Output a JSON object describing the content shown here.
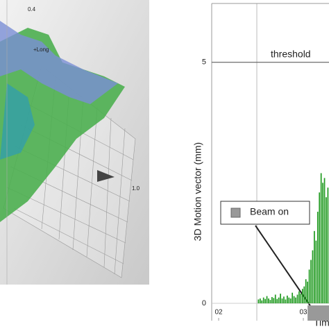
{
  "image_labels": [
    "0.4",
    "+Long",
    "1.0"
  ],
  "chart_data": {
    "type": "bar",
    "y_label": "3D Motion vector (mm)",
    "x_label": "Tim",
    "threshold": {
      "value": 5,
      "label": "threshold"
    },
    "beam_on": {
      "label": "Beam on",
      "start": 3.05
    },
    "color": "#1f9a1f",
    "x": [
      2.47,
      2.49,
      2.51,
      2.53,
      2.55,
      2.57,
      2.59,
      2.61,
      2.63,
      2.65,
      2.67,
      2.69,
      2.71,
      2.73,
      2.75,
      2.77,
      2.79,
      2.81,
      2.83,
      2.85,
      2.87,
      2.89,
      2.91,
      2.93,
      2.95,
      2.97,
      2.99,
      3.01,
      3.03,
      3.05,
      3.07,
      3.09,
      3.11,
      3.13,
      3.15,
      3.17,
      3.19,
      3.21,
      3.23,
      3.25,
      3.27,
      3.29
    ],
    "values": [
      0.08,
      0.1,
      0.06,
      0.12,
      0.09,
      0.15,
      0.1,
      0.07,
      0.13,
      0.11,
      0.18,
      0.09,
      0.12,
      0.2,
      0.1,
      0.14,
      0.08,
      0.16,
      0.12,
      0.1,
      0.22,
      0.15,
      0.12,
      0.18,
      0.25,
      0.2,
      0.3,
      0.35,
      0.5,
      0.45,
      0.7,
      0.9,
      1.1,
      1.5,
      1.3,
      1.9,
      2.3,
      2.7,
      2.5,
      2.6,
      2.2,
      2.4
    ],
    "xlim": [
      1.918,
      3.303
    ],
    "ylim": [
      -0.36,
      6.22
    ],
    "xticks": [
      {
        "value": 2,
        "label": "02"
      },
      {
        "value": 3,
        "label": "03"
      }
    ],
    "yticks": [
      0,
      5
    ]
  }
}
